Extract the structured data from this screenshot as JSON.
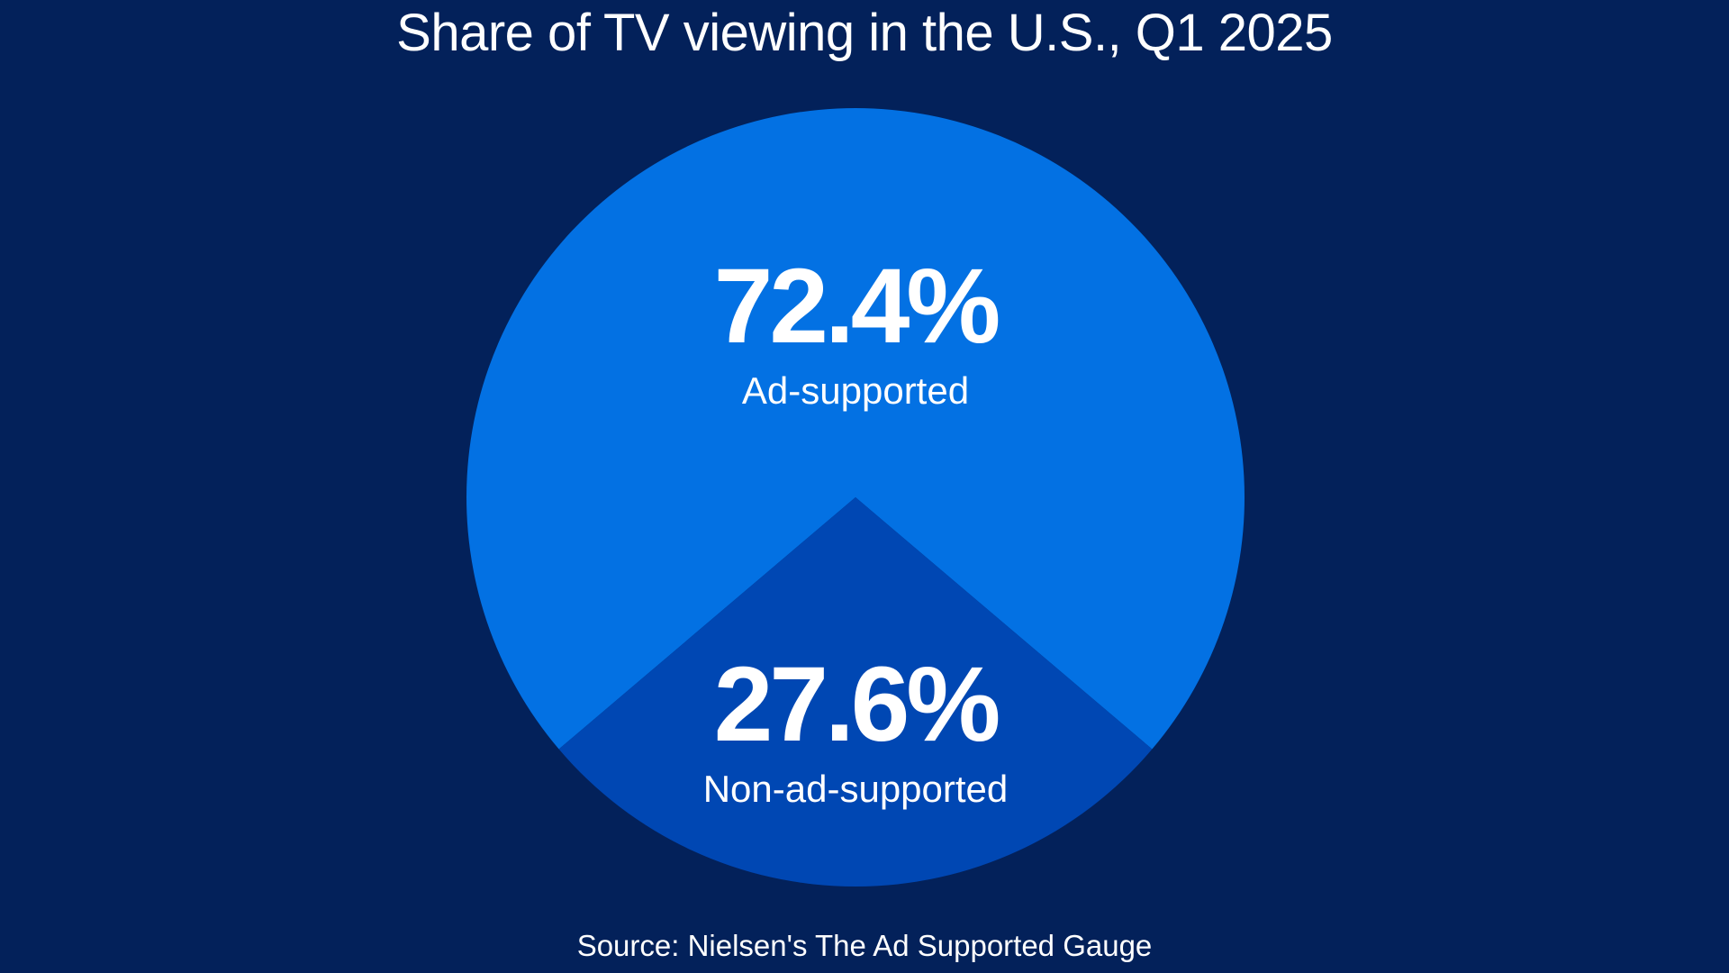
{
  "chart_data": {
    "type": "pie",
    "title": "Share of TV viewing in the U.S., Q1 2025",
    "source": "Source: Nielsen's The Ad Supported Gauge",
    "unit": "%",
    "slices": [
      {
        "label": "Ad-supported",
        "value": 72.4,
        "value_label": "72.4%",
        "color": "#0371e3"
      },
      {
        "label": "Non-ad-supported",
        "value": 27.6,
        "value_label": "27.6%",
        "color": "#0047b3"
      }
    ],
    "background_color": "#03215a",
    "text_color": "#ffffff"
  }
}
